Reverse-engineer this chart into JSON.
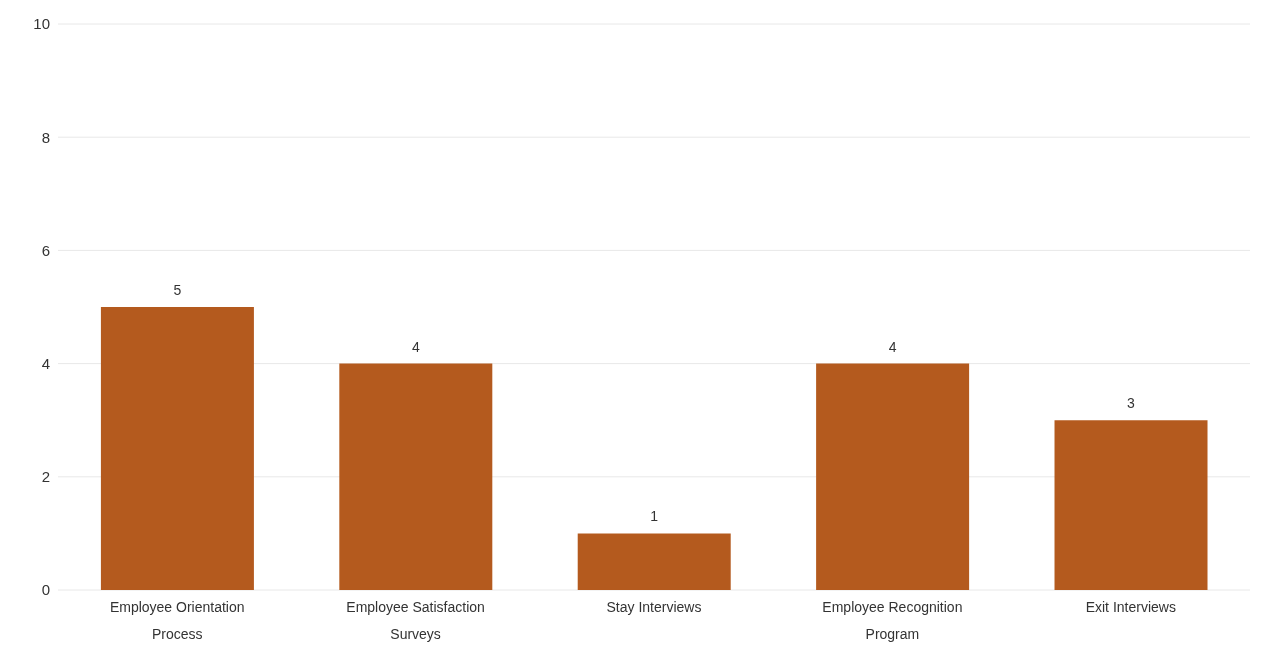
{
  "chart_data": {
    "type": "bar",
    "categories": [
      "Employee Orientation Process",
      "Employee Satisfaction Surveys",
      "Stay Interviews",
      "Employee Recognition Program",
      "Exit Interviews"
    ],
    "values": [
      5,
      4,
      1,
      4,
      3
    ],
    "color": "#b45a1e",
    "ylim": [
      0,
      10
    ],
    "yticks": [
      0,
      2,
      4,
      6,
      8,
      10
    ],
    "grid": "y",
    "data_labels": true
  }
}
